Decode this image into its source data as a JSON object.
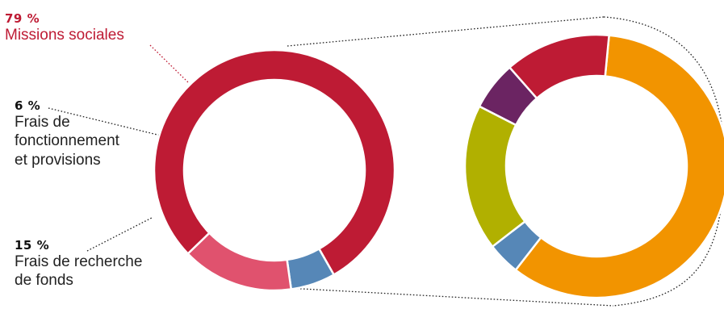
{
  "colors": {
    "missions": "#be1b34",
    "fonctionnement": "#5687b7",
    "recherche": "#e0526e",
    "orange": "#f29400",
    "blue": "#5687b7",
    "olive": "#b1b000",
    "purple": "#6b2462",
    "red": "#be1b34"
  },
  "labels": {
    "missions": {
      "pct": "79 %",
      "text": "Missions sociales"
    },
    "fonctionnement": {
      "pct": "6 %",
      "lines": [
        "Frais de",
        "fonctionnement",
        "et provisions"
      ]
    },
    "recherche": {
      "pct": "15 %",
      "lines": [
        "Frais de recherche",
        "de fonds"
      ]
    }
  },
  "chart_data": [
    {
      "type": "pie",
      "donut": true,
      "slices": [
        {
          "label": "Missions sociales",
          "value": 79
        },
        {
          "label": "Frais de fonctionnement et provisions",
          "value": 6
        },
        {
          "label": "Frais de recherche de fonds",
          "value": 15
        }
      ]
    },
    {
      "type": "pie",
      "donut": true,
      "slices": [
        {
          "value": 59,
          "color_key": "orange"
        },
        {
          "value": 4,
          "color_key": "blue"
        },
        {
          "value": 18,
          "color_key": "olive"
        },
        {
          "value": 6,
          "color_key": "purple"
        },
        {
          "value": 13,
          "color_key": "red"
        }
      ]
    }
  ]
}
